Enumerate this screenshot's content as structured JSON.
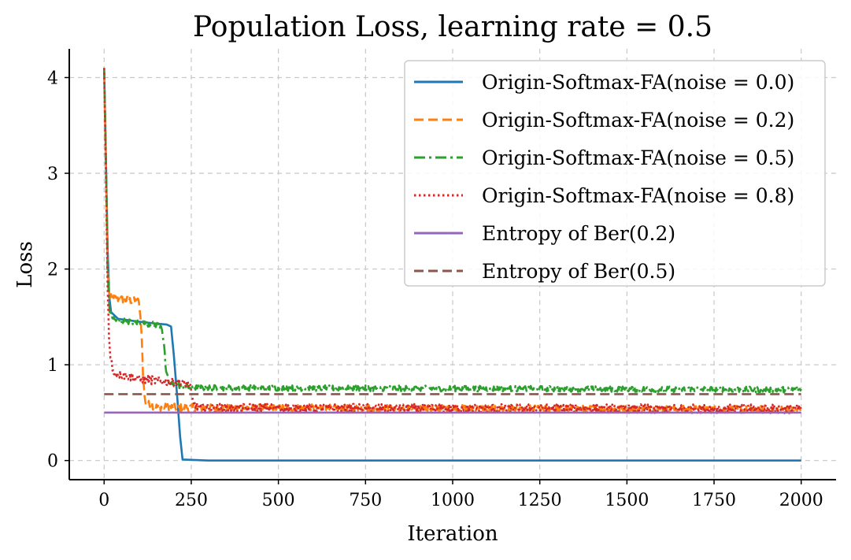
{
  "chart_data": {
    "type": "line",
    "title": "Population Loss, learning rate = 0.5",
    "xlabel": "Iteration",
    "ylabel": "Loss",
    "xlim": [
      -100,
      2100
    ],
    "ylim": [
      -0.2,
      4.3
    ],
    "xticks": [
      0,
      250,
      500,
      750,
      1000,
      1250,
      1500,
      1750,
      2000
    ],
    "yticks": [
      0,
      1,
      2,
      3,
      4
    ],
    "grid": true,
    "legend_position": "top-right",
    "series": [
      {
        "name": "Origin-Softmax-FA(noise = 0.0)",
        "color": "#1f77b4",
        "style": "solid",
        "points": [
          [
            0,
            4.1
          ],
          [
            5,
            3.2
          ],
          [
            10,
            2.2
          ],
          [
            15,
            1.7
          ],
          [
            20,
            1.55
          ],
          [
            40,
            1.48
          ],
          [
            100,
            1.45
          ],
          [
            150,
            1.43
          ],
          [
            180,
            1.42
          ],
          [
            192,
            1.4
          ],
          [
            200,
            1.1
          ],
          [
            210,
            0.65
          ],
          [
            218,
            0.25
          ],
          [
            225,
            0.01
          ],
          [
            300,
            0.0
          ],
          [
            2000,
            0.0
          ]
        ],
        "noise": 0
      },
      {
        "name": "Origin-Softmax-FA(noise = 0.2)",
        "color": "#ff7f0e",
        "style": "dashed",
        "points": [
          [
            0,
            4.05
          ],
          [
            5,
            3.1
          ],
          [
            10,
            2.0
          ],
          [
            15,
            1.7
          ],
          [
            60,
            1.68
          ],
          [
            100,
            1.66
          ],
          [
            108,
            1.3
          ],
          [
            112,
            0.85
          ],
          [
            118,
            0.6
          ],
          [
            150,
            0.56
          ],
          [
            250,
            0.55
          ],
          [
            2000,
            0.53
          ]
        ],
        "noise": 0.04
      },
      {
        "name": "Origin-Softmax-FA(noise = 0.5)",
        "color": "#2ca02c",
        "style": "dashdot",
        "points": [
          [
            0,
            4.1
          ],
          [
            5,
            3.2
          ],
          [
            10,
            2.0
          ],
          [
            15,
            1.55
          ],
          [
            30,
            1.47
          ],
          [
            100,
            1.44
          ],
          [
            165,
            1.41
          ],
          [
            172,
            1.2
          ],
          [
            178,
            0.9
          ],
          [
            190,
            0.8
          ],
          [
            250,
            0.76
          ],
          [
            2000,
            0.74
          ]
        ],
        "noise": 0.03
      },
      {
        "name": "Origin-Softmax-FA(noise = 0.8)",
        "color": "#d62728",
        "style": "dotted",
        "points": [
          [
            0,
            4.1
          ],
          [
            5,
            3.0
          ],
          [
            10,
            1.8
          ],
          [
            15,
            1.2
          ],
          [
            25,
            0.92
          ],
          [
            100,
            0.85
          ],
          [
            200,
            0.82
          ],
          [
            245,
            0.8
          ],
          [
            255,
            0.6
          ],
          [
            270,
            0.55
          ],
          [
            2000,
            0.54
          ]
        ],
        "noise": 0.045
      },
      {
        "name": "Entropy of Ber(0.2)",
        "color": "#9467bd",
        "style": "solid",
        "points": [
          [
            0,
            0.5004
          ],
          [
            2000,
            0.5004
          ]
        ],
        "noise": 0
      },
      {
        "name": "Entropy of Ber(0.5)",
        "color": "#8c564b",
        "style": "dashed",
        "points": [
          [
            0,
            0.6931
          ],
          [
            2000,
            0.6931
          ]
        ],
        "noise": 0
      }
    ]
  }
}
